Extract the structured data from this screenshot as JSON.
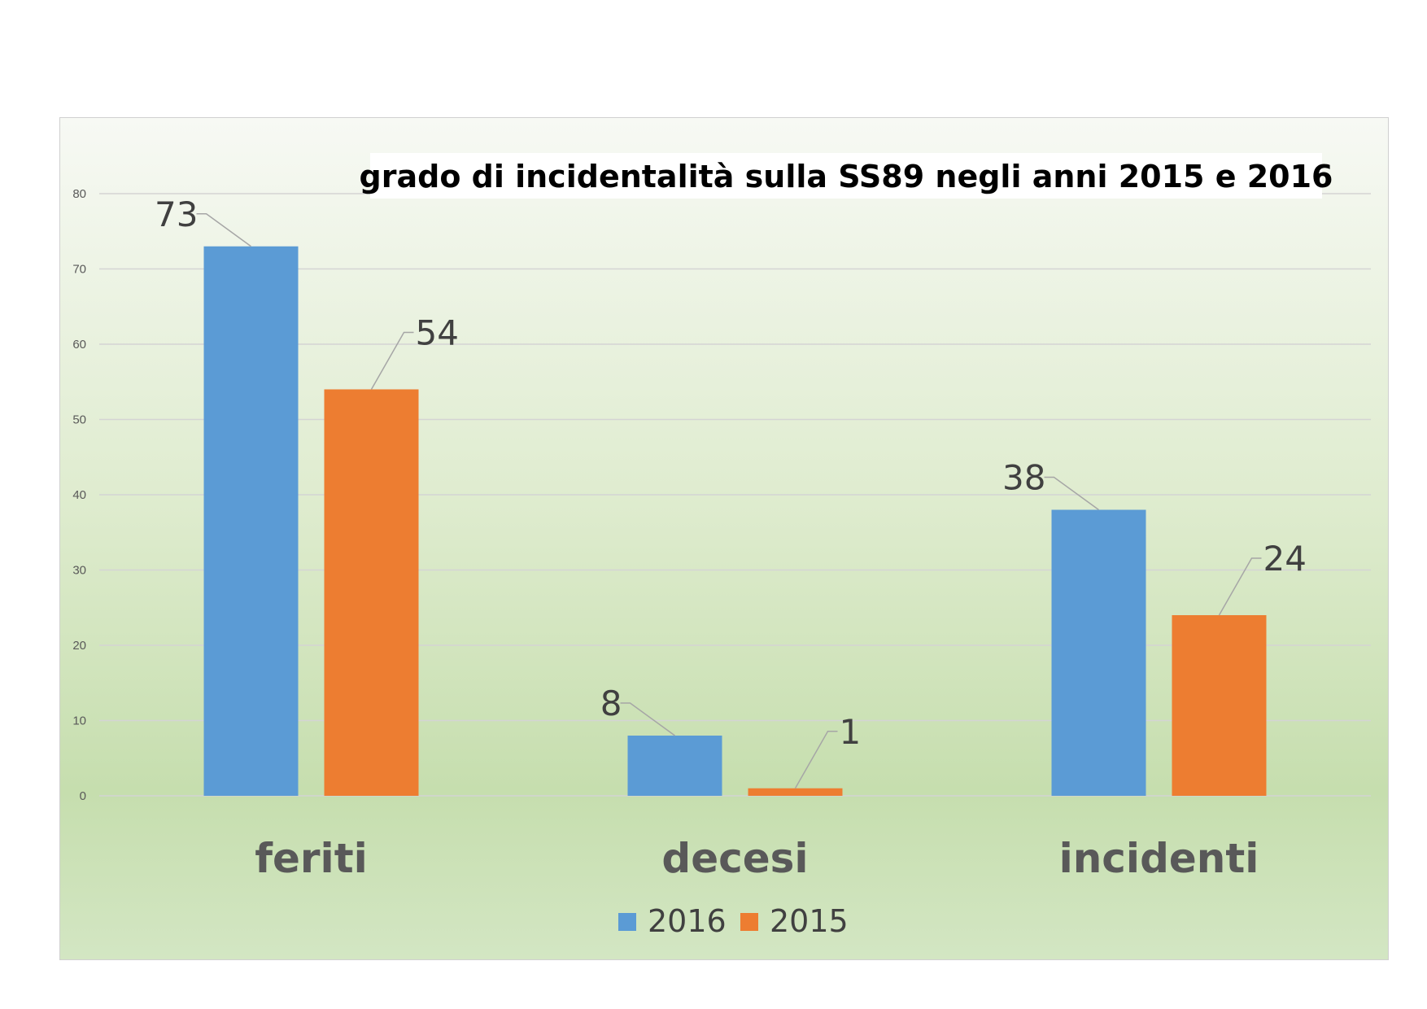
{
  "chart_data": {
    "type": "bar",
    "title": "grado di incidentalità sulla SS89 negli anni 2015 e 2016",
    "categories": [
      "feriti",
      "decesi",
      "incidenti"
    ],
    "series": [
      {
        "name": "2016",
        "values": [
          73,
          8,
          38
        ],
        "color": "#5b9bd5"
      },
      {
        "name": "2015",
        "values": [
          54,
          1,
          24
        ],
        "color": "#ed7d31"
      }
    ],
    "ylim": [
      0,
      80
    ],
    "yticks": [
      0,
      10,
      20,
      30,
      40,
      50,
      60,
      70,
      80
    ],
    "grid": true,
    "legend": "bottom-center"
  }
}
